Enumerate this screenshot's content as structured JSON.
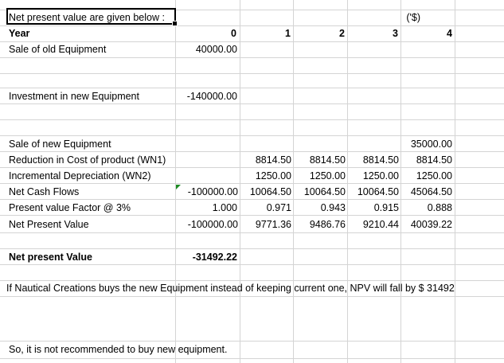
{
  "sheet": {
    "title_cell": "Net present value are given below :",
    "currency_unit": "('$)",
    "year_label": "Year",
    "years": [
      "0",
      "1",
      "2",
      "3",
      "4"
    ],
    "rows": [
      {
        "label": "Sale of old Equipment",
        "values": [
          "40000.00",
          "",
          "",
          "",
          ""
        ]
      },
      {
        "label": "Investment in new Equipment",
        "values": [
          "-140000.00",
          "",
          "",
          "",
          ""
        ]
      },
      {
        "label": "Sale of new Equipment",
        "values": [
          "",
          "",
          "",
          "",
          "35000.00"
        ]
      },
      {
        "label": "Reduction in Cost of product (WN1)",
        "values": [
          "",
          "8814.50",
          "8814.50",
          "8814.50",
          "8814.50"
        ]
      },
      {
        "label": "Incremental Depreciation (WN2)",
        "values": [
          "",
          "1250.00",
          "1250.00",
          "1250.00",
          "1250.00"
        ]
      },
      {
        "label": "Net Cash Flows",
        "values": [
          "-100000.00",
          "10064.50",
          "10064.50",
          "10064.50",
          "45064.50"
        ]
      },
      {
        "label": "Present value Factor @ 3%",
        "values": [
          "1.000",
          "0.971",
          "0.943",
          "0.915",
          "0.888"
        ]
      },
      {
        "label": "Net Present Value",
        "values": [
          "-100000.00",
          "9771.36",
          "9486.76",
          "9210.44",
          "40039.22"
        ]
      }
    ],
    "npv_label": "Net present Value",
    "npv_value": "-31492.22",
    "conclusion": "If Nautical Creations buys the new Equipment instead of keeping current one, NPV will fall by $ 31492",
    "recommendation": "So, it is not recommended to buy new equipment."
  },
  "colors": {
    "gridline": "#d4d4d4",
    "selection_border": "#000000",
    "error_indicator": "#1e8b24"
  }
}
